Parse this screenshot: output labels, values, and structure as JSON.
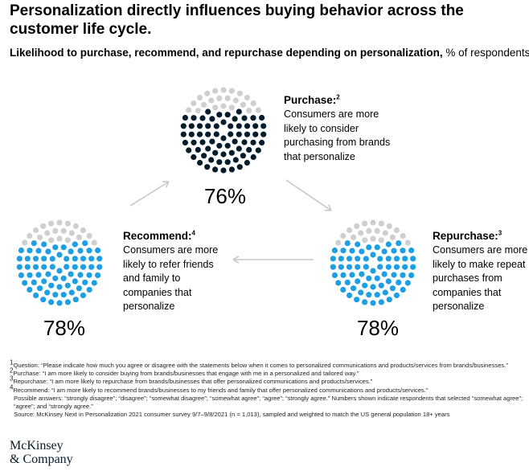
{
  "title": "Personalization directly influences buying behavior across the customer life cycle.",
  "subtitle": {
    "bold": "Likelihood to purchase, recommend, and repurchase depending on personalization,",
    "rest": " % of respondents",
    "sup": "1"
  },
  "colors": {
    "purchase": "#051c2c",
    "recommend_repurchase": "#1f9fe3",
    "remainder": "#cfcfcf",
    "arrow": "#c8c8c8"
  },
  "chart_data": [
    {
      "type": "dot-matrix",
      "name": "Purchase",
      "label_sup": "2",
      "value": 76,
      "value_label": "76%",
      "description": [
        "Consumers are more",
        "likely to consider",
        "purchasing from brands",
        "that personalize"
      ]
    },
    {
      "type": "dot-matrix",
      "name": "Repurchase",
      "label_sup": "3",
      "value": 78,
      "value_label": "78%",
      "description": [
        "Consumers are more",
        "likely to make repeat",
        "purchases from",
        "companies that",
        "personalize"
      ]
    },
    {
      "type": "dot-matrix",
      "name": "Recommend",
      "label_sup": "4",
      "value": 78,
      "value_label": "78%",
      "description": [
        "Consumers are more",
        "likely to refer friends",
        "and family to",
        "companies that",
        "personalize"
      ]
    }
  ],
  "footnotes": [
    {
      "num": "1",
      "text": "Question: “Please indicate how much you agree or disagree with the statements below when it comes to personalized communications and products/services from brands/businesses.”"
    },
    {
      "num": "2",
      "text": "Purchase: “I am more likely to consider buying from brands/businesses that engage with me in a personalized and tailored way.”"
    },
    {
      "num": "3",
      "text": "Repurchase: “I am more likely to repurchase from brands/businesses that offer personalized communications and products/services.”"
    },
    {
      "num": "4",
      "text": "Recommend: “I am more likely to recommend brands/businesses to my friends and family that offer personalized communications and products/services.”"
    }
  ],
  "possible_answers": "Possible answers: “strongly disagree”; “disagree”; “somewhat disagree”; “somewhat agree”; “agree”; “strongly agree.” Numbers shown indicate respondents that selected “somewhat agree”; “agree”; and “strongly agree.”",
  "source": "Source: McKinsey Next in Personalization 2021 consumer survey 9/7–9/8/2021 (n = 1,013), sampled and weighted to match the US general population 18+ years",
  "logo": {
    "line1": "McKinsey",
    "line2": "& Company"
  }
}
